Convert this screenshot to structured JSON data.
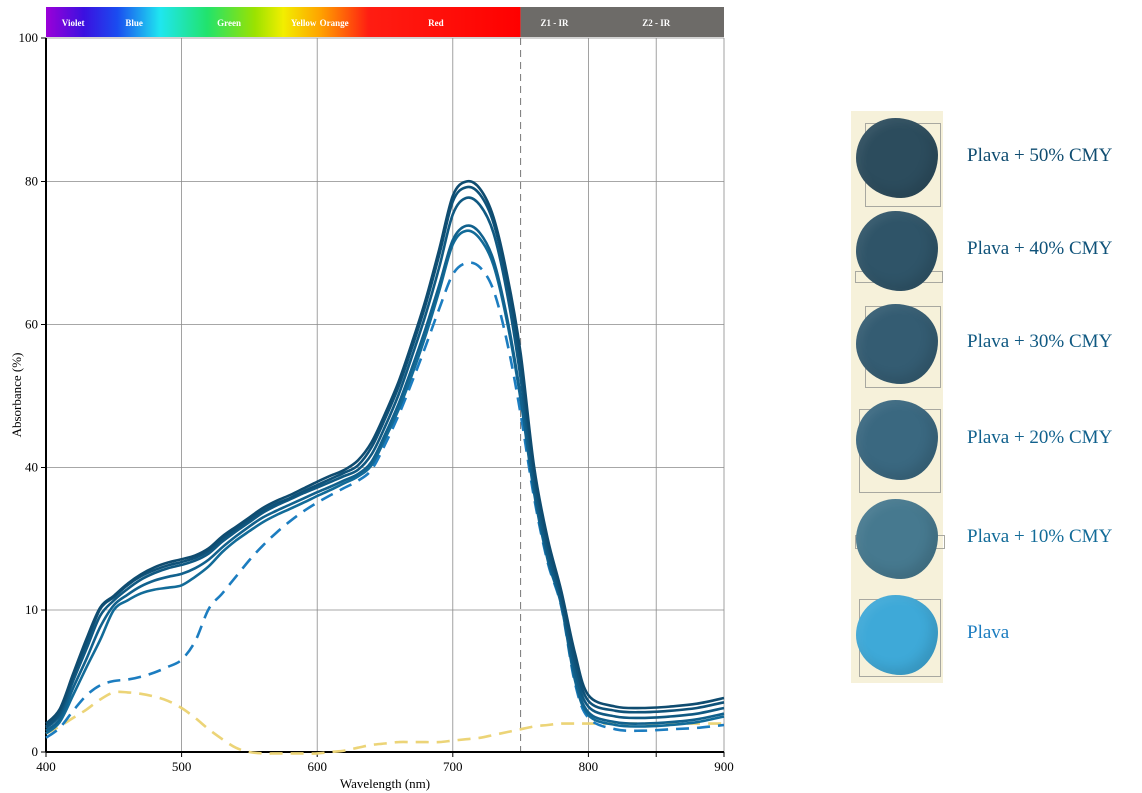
{
  "chart_data": {
    "type": "line",
    "xlabel": "Wavelength (nm)",
    "ylabel": "Absorbance (%)",
    "xlim": [
      400,
      900
    ],
    "x_ticks": [
      400,
      500,
      600,
      700,
      800,
      900
    ],
    "y_ticks": [
      0,
      10,
      40,
      60,
      80,
      100
    ],
    "y_tick_labels": [
      "0",
      "10",
      "40",
      "60",
      "80",
      "100"
    ],
    "grid": true,
    "y_scale_note": "non-linear axis: 0 and 10 labels sit at same spacing as 40–60–80–100",
    "vertical_dashed_line_at": 750,
    "spectrum_bands": [
      {
        "label": "Violet",
        "from": 400,
        "to": 440
      },
      {
        "label": "Blue",
        "from": 440,
        "to": 490
      },
      {
        "label": "Green",
        "from": 490,
        "to": 580
      },
      {
        "label": "Yellow",
        "from": 580,
        "to": 600
      },
      {
        "label": "Orange",
        "from": 600,
        "to": 625
      },
      {
        "label": "Red",
        "from": 625,
        "to": 750
      },
      {
        "label": "Z1 - IR",
        "from": 750,
        "to": 800
      },
      {
        "label": "Z2 - IR",
        "from": 800,
        "to": 900
      }
    ],
    "series": [
      {
        "name": "Plava + 50% CMY",
        "color": "#0f4c70",
        "dash": "solid",
        "x": [
          400,
          410,
          420,
          430,
          440,
          450,
          460,
          470,
          480,
          490,
          500,
          510,
          520,
          530,
          540,
          550,
          560,
          570,
          580,
          590,
          600,
          610,
          620,
          630,
          640,
          650,
          660,
          670,
          680,
          690,
          700,
          710,
          720,
          730,
          740,
          750,
          760,
          770,
          780,
          790,
          800,
          820,
          840,
          860,
          880,
          900
        ],
        "y": [
          2,
          3,
          5.5,
          8,
          10.5,
          13,
          15.5,
          17.5,
          19,
          20,
          20.7,
          21.5,
          23,
          25.5,
          27.5,
          29.5,
          31.5,
          33,
          34.2,
          35.6,
          37,
          38.3,
          39.5,
          41,
          43.5,
          47.5,
          52,
          57.5,
          63.5,
          70.5,
          78,
          80,
          79,
          75,
          67,
          56,
          40,
          25,
          14,
          7,
          4,
          3.2,
          3.1,
          3.2,
          3.4,
          3.8
        ]
      },
      {
        "name": "Plava + 40% CMY",
        "color": "#0f5279",
        "dash": "solid",
        "x": [
          400,
          410,
          420,
          430,
          440,
          450,
          460,
          470,
          480,
          490,
          500,
          510,
          520,
          530,
          540,
          550,
          560,
          570,
          580,
          590,
          600,
          610,
          620,
          630,
          640,
          650,
          660,
          670,
          680,
          690,
          700,
          710,
          720,
          730,
          740,
          750,
          760,
          770,
          780,
          790,
          800,
          820,
          840,
          860,
          880,
          900
        ],
        "y": [
          1.8,
          2.8,
          5.3,
          7.7,
          10.2,
          12.7,
          15.2,
          17.1,
          18.4,
          19.4,
          20.1,
          21,
          22.5,
          25,
          27,
          29,
          30.9,
          32.4,
          33.6,
          35,
          36.3,
          37.6,
          38.9,
          40.3,
          42.8,
          46.8,
          51.3,
          56.8,
          62.8,
          69.7,
          77.2,
          79.2,
          78.2,
          74.2,
          66,
          54.5,
          38.5,
          23.5,
          13,
          6.4,
          3.6,
          2.9,
          2.8,
          2.9,
          3.1,
          3.5
        ]
      },
      {
        "name": "Plava + 30% CMY",
        "color": "#105982",
        "dash": "solid",
        "x": [
          400,
          410,
          420,
          430,
          440,
          450,
          460,
          470,
          480,
          490,
          500,
          510,
          520,
          530,
          540,
          550,
          560,
          570,
          580,
          590,
          600,
          610,
          620,
          630,
          640,
          650,
          660,
          670,
          680,
          690,
          700,
          710,
          720,
          730,
          740,
          750,
          760,
          770,
          780,
          790,
          800,
          820,
          840,
          860,
          880,
          900
        ],
        "y": [
          1.7,
          2.6,
          5,
          7.3,
          9.6,
          12,
          14.4,
          16.4,
          17.8,
          18.8,
          19.5,
          20.4,
          21.9,
          24.4,
          26.5,
          28.5,
          30.5,
          32,
          33.3,
          34.6,
          35.8,
          37,
          38.2,
          39.5,
          41.8,
          45.7,
          50.2,
          55.6,
          61.4,
          68,
          75.4,
          77.7,
          76.7,
          72.8,
          64.4,
          52.5,
          36.5,
          22,
          12,
          5.8,
          3.2,
          2.5,
          2.4,
          2.5,
          2.7,
          3.1
        ]
      },
      {
        "name": "Plava + 20% CMY",
        "color": "#11618d",
        "dash": "solid",
        "x": [
          400,
          410,
          420,
          430,
          440,
          450,
          460,
          470,
          480,
          490,
          500,
          510,
          520,
          530,
          540,
          550,
          560,
          570,
          580,
          590,
          600,
          610,
          620,
          630,
          640,
          650,
          660,
          670,
          680,
          690,
          700,
          710,
          720,
          730,
          740,
          750,
          760,
          770,
          780,
          790,
          800,
          820,
          840,
          860,
          880,
          900
        ],
        "y": [
          1.5,
          2.3,
          4.5,
          6.6,
          8.8,
          11,
          13.2,
          15,
          16.2,
          17,
          17.6,
          18.8,
          20.6,
          23.2,
          25.5,
          27.6,
          29.5,
          30.9,
          32.2,
          33.5,
          34.8,
          36,
          37.3,
          38.6,
          40.8,
          44.6,
          48.9,
          54,
          59.5,
          65.5,
          71.8,
          73.8,
          72.8,
          69,
          61,
          50,
          35,
          21,
          11.3,
          5.3,
          2.8,
          2.1,
          2,
          2.1,
          2.3,
          2.7
        ]
      },
      {
        "name": "Plava + 10% CMY",
        "color": "#126b98",
        "dash": "solid",
        "x": [
          400,
          410,
          420,
          430,
          440,
          450,
          460,
          470,
          480,
          490,
          500,
          510,
          520,
          530,
          540,
          550,
          560,
          570,
          580,
          590,
          600,
          610,
          620,
          630,
          640,
          650,
          660,
          670,
          680,
          690,
          700,
          710,
          720,
          730,
          740,
          750,
          760,
          770,
          780,
          790,
          800,
          820,
          840,
          860,
          880,
          900
        ],
        "y": [
          1.3,
          2.1,
          4,
          6,
          7.9,
          10,
          12,
          13.5,
          14.3,
          14.7,
          15.2,
          17,
          19.2,
          22.2,
          24.6,
          26.6,
          28.5,
          30,
          31.3,
          32.6,
          34,
          35.3,
          36.7,
          38.1,
          40.3,
          44,
          48.1,
          53,
          58.5,
          64.7,
          71.2,
          73.1,
          72,
          68.3,
          60.4,
          49.5,
          34.5,
          20.5,
          11,
          5.1,
          2.6,
          1.9,
          1.8,
          1.9,
          2.1,
          2.5
        ]
      },
      {
        "name": "Plava",
        "color": "#1c7dc0",
        "dash": "dashed",
        "x": [
          400,
          410,
          420,
          430,
          440,
          450,
          460,
          470,
          480,
          490,
          500,
          510,
          520,
          530,
          540,
          550,
          560,
          570,
          580,
          590,
          600,
          610,
          620,
          630,
          640,
          650,
          660,
          670,
          680,
          690,
          700,
          710,
          720,
          730,
          740,
          750,
          760,
          770,
          780,
          790,
          800,
          820,
          840,
          860,
          880,
          900
        ],
        "y": [
          1,
          1.7,
          2.9,
          4,
          4.7,
          5,
          5.1,
          5.3,
          5.6,
          6,
          6.5,
          7.8,
          10.2,
          13.5,
          17,
          20.5,
          23.6,
          26.3,
          28.7,
          30.8,
          32.6,
          34.2,
          35.7,
          37.2,
          39.5,
          43.2,
          47.3,
          52,
          57,
          62.2,
          67,
          68.6,
          68,
          64.8,
          57.6,
          47.5,
          33.5,
          20,
          10.7,
          4.9,
          2.4,
          1.6,
          1.5,
          1.6,
          1.7,
          1.9
        ]
      },
      {
        "name": "",
        "color": "#ecd477",
        "dash": "dashed",
        "x": [
          400,
          410,
          420,
          430,
          440,
          450,
          460,
          470,
          480,
          490,
          500,
          510,
          520,
          530,
          540,
          550,
          560,
          570,
          580,
          590,
          600,
          610,
          620,
          630,
          640,
          650,
          660,
          670,
          680,
          690,
          700,
          710,
          720,
          730,
          740,
          750,
          760,
          770,
          780,
          790,
          800,
          820,
          840,
          860,
          880,
          900
        ],
        "y": [
          1.3,
          1.8,
          2.4,
          3,
          3.7,
          4.2,
          4.2,
          4.1,
          3.9,
          3.6,
          3.1,
          2.4,
          1.6,
          0.9,
          0.3,
          0,
          -0.1,
          -0.1,
          -0.1,
          -0.1,
          -0.1,
          0,
          0.1,
          0.3,
          0.5,
          0.6,
          0.7,
          0.7,
          0.7,
          0.7,
          0.8,
          0.9,
          1,
          1.2,
          1.4,
          1.6,
          1.8,
          1.9,
          2,
          2,
          2,
          2,
          2,
          2,
          2,
          2
        ]
      }
    ]
  },
  "swatches": [
    {
      "label": "Plava + 50% CMY",
      "color": "#2c4c5d",
      "label_color": "#0f4c70"
    },
    {
      "label": "Plava + 40% CMY",
      "color": "#2f5468",
      "label_color": "#0f5279"
    },
    {
      "label": "Plava + 30% CMY",
      "color": "#345c72",
      "label_color": "#105982"
    },
    {
      "label": "Plava + 20% CMY",
      "color": "#3a6880",
      "label_color": "#11618d"
    },
    {
      "label": "Plava + 10% CMY",
      "color": "#46798f",
      "label_color": "#126b98"
    },
    {
      "label": "Plava",
      "color": "#3ea9d8",
      "label_color": "#1c7dc0"
    }
  ]
}
